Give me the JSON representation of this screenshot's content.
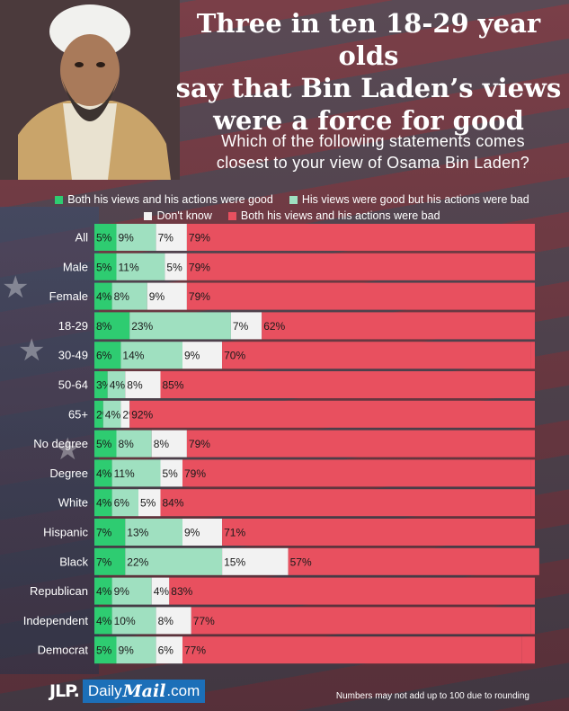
{
  "header": {
    "title_lines": [
      "Three in ten 18-29 year olds",
      "say that Bin Laden’s views",
      "were a force for good"
    ],
    "subtitle_lines": [
      "Which of the following statements comes",
      "closest to your view of Osama Bin Laden?"
    ]
  },
  "legend": [
    {
      "label": "Both his views and his actions were good",
      "color": "#2ecc71"
    },
    {
      "label": "His views were good but his actions were bad",
      "color": "#9fe0c0"
    },
    {
      "label": "Don't know",
      "color": "#f2f2f2"
    },
    {
      "label": "Both his views and his actions were bad",
      "color": "#e8505f"
    }
  ],
  "footer": {
    "brand_jlp": "JLP.",
    "brand_daily": "Daily",
    "brand_mail": "Mail",
    "brand_com": ".com",
    "note": "Numbers may not add up to 100 due to rounding"
  },
  "chart_data": {
    "type": "bar",
    "orientation": "horizontal",
    "stacked": true,
    "unit": "%",
    "categories": [
      "All",
      "Male",
      "Female",
      "18-29",
      "30-49",
      "50-64",
      "65+",
      "No degree",
      "Degree",
      "White",
      "Hispanic",
      "Black",
      "Republican",
      "Independent",
      "Democrat"
    ],
    "series": [
      {
        "name": "Both his views and his actions were good",
        "color": "#2ecc71",
        "values": [
          5,
          5,
          4,
          8,
          6,
          3,
          2,
          5,
          4,
          4,
          7,
          7,
          4,
          4,
          5
        ]
      },
      {
        "name": "His views were good but his actions were bad",
        "color": "#9fe0c0",
        "values": [
          9,
          11,
          8,
          23,
          14,
          4,
          4,
          8,
          11,
          6,
          13,
          22,
          9,
          10,
          9
        ]
      },
      {
        "name": "Don't know",
        "color": "#f2f2f2",
        "values": [
          7,
          5,
          9,
          7,
          9,
          8,
          2,
          8,
          5,
          5,
          9,
          15,
          4,
          8,
          6
        ]
      },
      {
        "name": "Both his views and his actions were bad",
        "color": "#e8505f",
        "values": [
          79,
          79,
          79,
          62,
          70,
          85,
          92,
          79,
          79,
          84,
          71,
          57,
          83,
          77,
          77
        ]
      }
    ],
    "xlim": [
      0,
      100
    ],
    "legend_position": "top"
  }
}
